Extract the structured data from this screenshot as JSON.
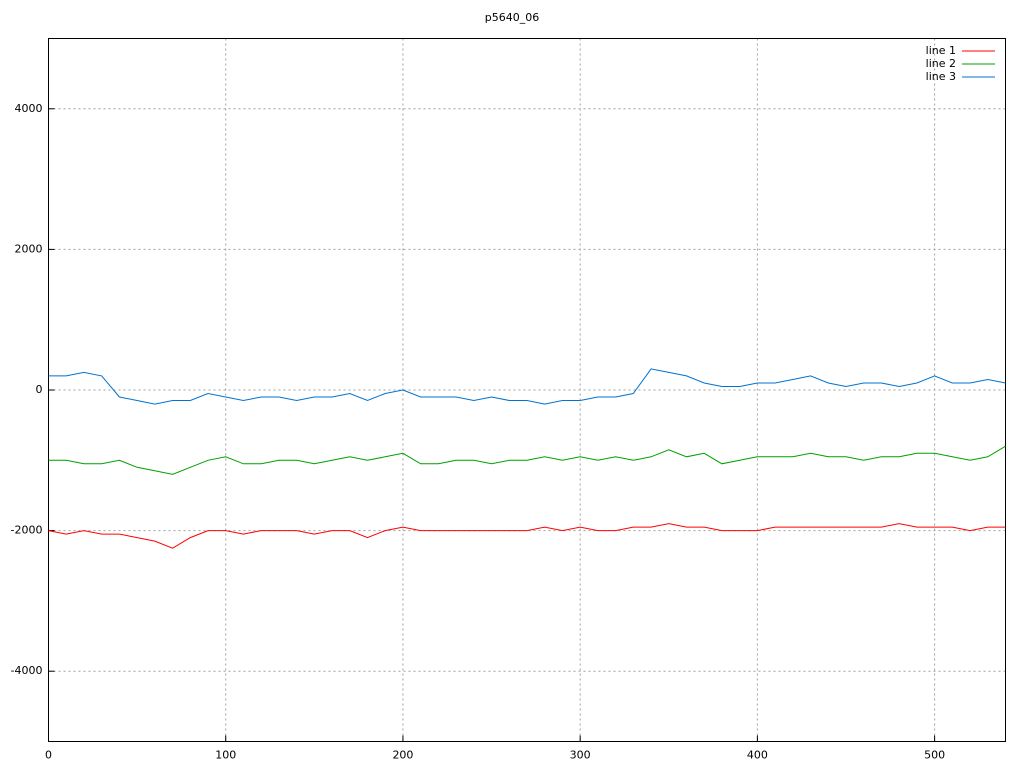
{
  "chart_data": {
    "type": "line",
    "title": "p5640_06",
    "x": [
      0,
      10,
      20,
      30,
      40,
      50,
      60,
      70,
      80,
      90,
      100,
      110,
      120,
      130,
      140,
      150,
      160,
      170,
      180,
      190,
      200,
      210,
      220,
      230,
      240,
      250,
      260,
      270,
      280,
      290,
      300,
      310,
      320,
      330,
      340,
      350,
      360,
      370,
      380,
      390,
      400,
      410,
      420,
      430,
      440,
      450,
      460,
      470,
      480,
      490,
      500,
      510,
      520,
      530,
      540
    ],
    "series": [
      {
        "name": "line 1",
        "color": "#ff0000",
        "values": [
          -2000,
          -2050,
          -2000,
          -2050,
          -2050,
          -2100,
          -2150,
          -2250,
          -2100,
          -2000,
          -2000,
          -2050,
          -2000,
          -2000,
          -2000,
          -2050,
          -2000,
          -2000,
          -2100,
          -2000,
          -1950,
          -2000,
          -2000,
          -2000,
          -2000,
          -2000,
          -2000,
          -2000,
          -1950,
          -2000,
          -1950,
          -2000,
          -2000,
          -1950,
          -1950,
          -1900,
          -1950,
          -1950,
          -2000,
          -2000,
          -2000,
          -1950,
          -1950,
          -1950,
          -1950,
          -1950,
          -1950,
          -1950,
          -1900,
          -1950,
          -1950,
          -1950,
          -2000,
          -1950,
          -1950
        ]
      },
      {
        "name": "line 2",
        "color": "#00a000",
        "values": [
          -1000,
          -1000,
          -1050,
          -1050,
          -1000,
          -1100,
          -1150,
          -1200,
          -1100,
          -1000,
          -950,
          -1050,
          -1050,
          -1000,
          -1000,
          -1050,
          -1000,
          -950,
          -1000,
          -950,
          -900,
          -1050,
          -1050,
          -1000,
          -1000,
          -1050,
          -1000,
          -1000,
          -950,
          -1000,
          -950,
          -1000,
          -950,
          -1000,
          -950,
          -850,
          -950,
          -900,
          -1050,
          -1000,
          -950,
          -950,
          -950,
          -900,
          -950,
          -950,
          -1000,
          -950,
          -950,
          -900,
          -900,
          -950,
          -1000,
          -950,
          -800
        ]
      },
      {
        "name": "line 3",
        "color": "#0072d0",
        "values": [
          200,
          200,
          250,
          200,
          -100,
          -150,
          -200,
          -150,
          -150,
          -50,
          -100,
          -150,
          -100,
          -100,
          -150,
          -100,
          -100,
          -50,
          -150,
          -50,
          0,
          -100,
          -100,
          -100,
          -150,
          -100,
          -150,
          -150,
          -200,
          -150,
          -150,
          -100,
          -100,
          -50,
          300,
          250,
          200,
          100,
          50,
          50,
          100,
          100,
          150,
          200,
          100,
          50,
          100,
          100,
          50,
          100,
          200,
          100,
          100,
          150,
          100
        ]
      }
    ],
    "xlim": [
      0,
      540
    ],
    "ylim": [
      -5000,
      5000
    ],
    "xticks": [
      0,
      100,
      200,
      300,
      400,
      500
    ],
    "yticks": [
      -4000,
      -2000,
      0,
      2000,
      4000
    ],
    "grid": true,
    "legend": "top-right"
  }
}
